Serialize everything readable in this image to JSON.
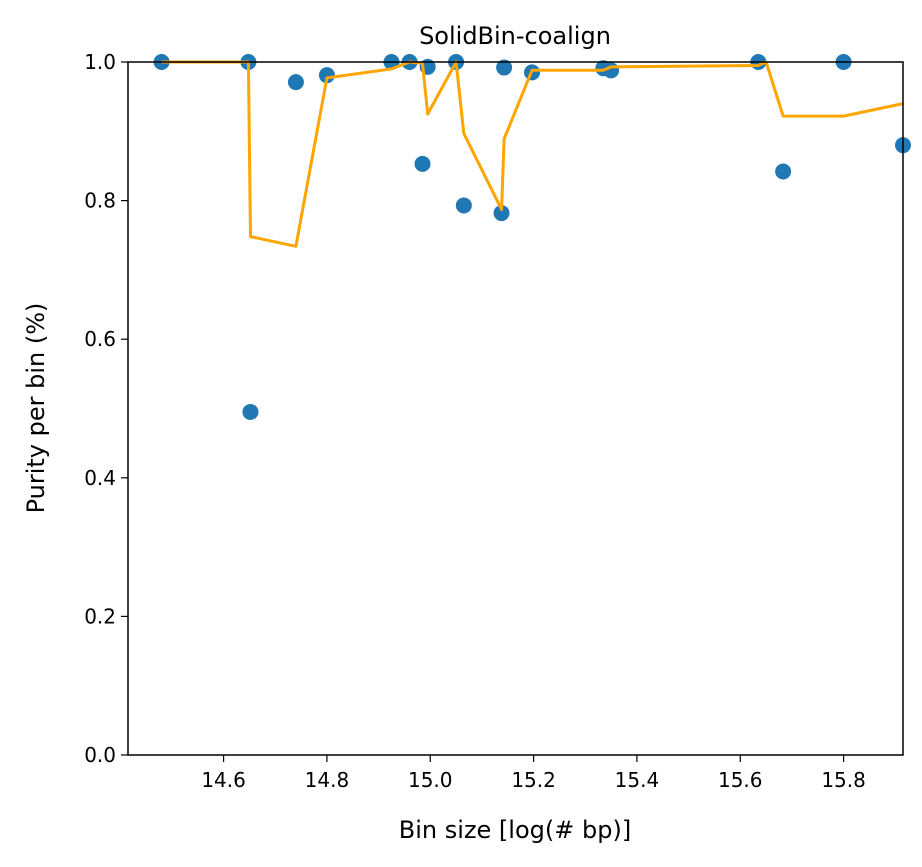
{
  "chart_data": {
    "type": "scatter",
    "title": "SolidBin-coalign",
    "xlabel": "Bin size [log(# bp)]",
    "ylabel": "Purity per bin (%)",
    "xlim": [
      14.415,
      15.915
    ],
    "ylim": [
      0.0,
      1.0
    ],
    "x_ticks": [
      14.6,
      14.8,
      15.0,
      15.2,
      15.4,
      15.6,
      15.8
    ],
    "x_tick_labels": [
      "14.6",
      "14.8",
      "15.0",
      "15.2",
      "15.4",
      "15.6",
      "15.8"
    ],
    "y_ticks": [
      0.0,
      0.2,
      0.4,
      0.6,
      0.8,
      1.0
    ],
    "y_tick_labels": [
      "0.0",
      "0.2",
      "0.4",
      "0.6",
      "0.8",
      "1.0"
    ],
    "grid": false,
    "legend": "none",
    "colors": {
      "points": "#1f77b4",
      "trend": "#ffa500"
    },
    "series": [
      {
        "type": "scatter",
        "x": [
          14.48,
          14.648,
          14.652,
          14.74,
          14.8,
          14.925,
          14.96,
          14.985,
          14.995,
          15.05,
          15.065,
          15.138,
          15.143,
          15.197,
          15.335,
          15.35,
          15.635,
          15.683,
          15.8,
          15.915
        ],
        "y": [
          1.0,
          1.0,
          0.495,
          0.971,
          0.981,
          1.0,
          1.0,
          0.853,
          0.993,
          1.0,
          0.793,
          0.782,
          0.992,
          0.985,
          0.991,
          0.988,
          1.0,
          0.842,
          1.0,
          0.88
        ]
      },
      {
        "type": "line",
        "x": [
          14.48,
          14.648,
          14.652,
          14.74,
          14.8,
          14.925,
          14.96,
          14.985,
          14.995,
          15.05,
          15.065,
          15.138,
          15.143,
          15.197,
          15.335,
          15.35,
          15.635,
          15.65,
          15.683,
          15.8,
          15.915
        ],
        "y": [
          1.0,
          1.0,
          0.748,
          0.734,
          0.977,
          0.99,
          1.0,
          0.998,
          0.925,
          1.0,
          0.897,
          0.787,
          0.889,
          0.988,
          0.988,
          0.993,
          0.995,
          1.0,
          0.922,
          0.922,
          0.94
        ]
      }
    ]
  }
}
